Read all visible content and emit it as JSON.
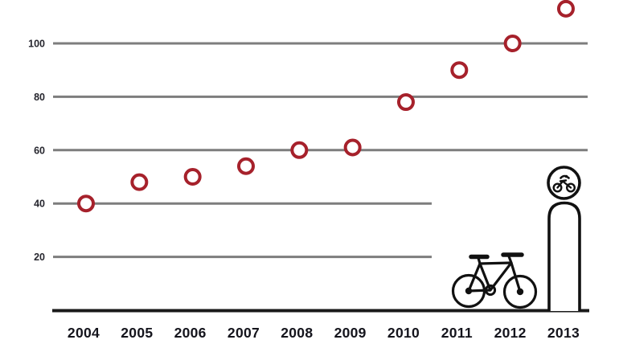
{
  "chart_data": {
    "type": "scatter",
    "title": "",
    "xlabel": "",
    "ylabel": "",
    "x": [
      2004,
      2005,
      2006,
      2007,
      2008,
      2009,
      2010,
      2011,
      2012,
      2013
    ],
    "values": [
      40,
      48,
      50,
      54,
      60,
      61,
      78,
      90,
      100,
      113
    ],
    "ylim": [
      0,
      116
    ],
    "yticks": [
      20,
      40,
      60,
      80,
      100
    ],
    "short_gridlines": [
      20,
      40
    ],
    "grid": "horizontal-only",
    "legend": "none",
    "marker": {
      "shape": "open-ring",
      "color": "#a6212b",
      "fill": "#ffffff",
      "radius": 9,
      "stroke_width": 4
    },
    "colors": {
      "gridline": "#7d7d7d",
      "axis_line": "#1a1a1a",
      "y_tick_label": "#26262e",
      "x_tick_label": "#14141c",
      "icon_ink": "#111111",
      "background": "#ffffff"
    },
    "decorations": [
      "bicycle-icon",
      "bike-sign-bollard-icon"
    ]
  }
}
